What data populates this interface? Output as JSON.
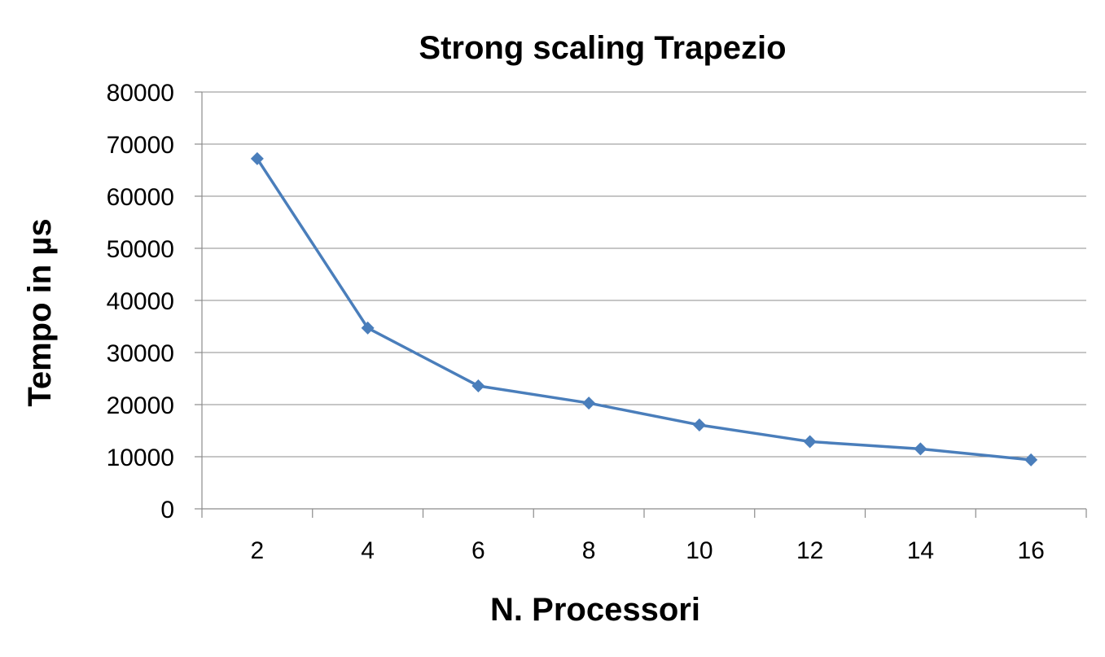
{
  "colors": {
    "series": "#4a7ebb",
    "marker": "#4a7ebb",
    "grid": "#8c8c8c",
    "text": "#000000"
  },
  "chart_data": {
    "type": "line",
    "title": "Strong scaling Trapezio",
    "xlabel": "N. Processori",
    "ylabel": "Tempo in µs",
    "categories": [
      "2",
      "4",
      "6",
      "8",
      "10",
      "12",
      "14",
      "16"
    ],
    "series": [
      {
        "values": [
          67200,
          34700,
          23600,
          20300,
          16100,
          12900,
          11500,
          9400
        ],
        "marker": "diamond"
      }
    ],
    "ylim": [
      0,
      80000
    ],
    "yticks": [
      0,
      10000,
      20000,
      30000,
      40000,
      50000,
      60000,
      70000,
      80000
    ],
    "ytick_labels": [
      "0",
      "10000",
      "20000",
      "30000",
      "40000",
      "50000",
      "60000",
      "70000",
      "80000"
    ],
    "grid": true,
    "legend": "none"
  }
}
